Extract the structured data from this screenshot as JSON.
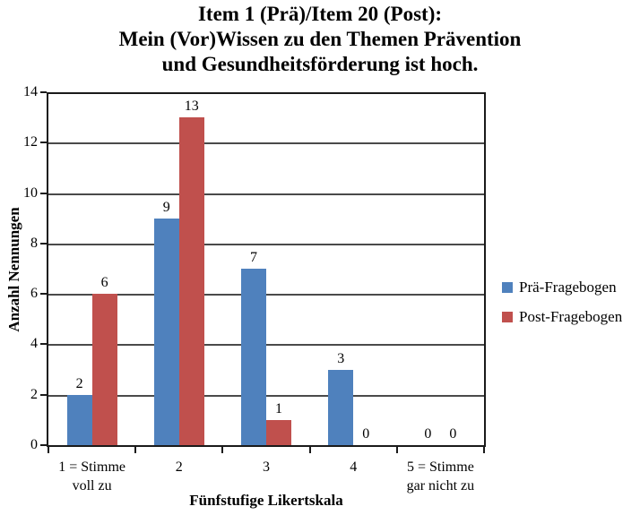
{
  "chart_data": {
    "type": "bar",
    "title": "Item 1 (Prä)/Item 20 (Post): Mein (Vor)Wissen zu den Themen Prävention und Gesundheitsförderung ist hoch.",
    "title_lines": [
      "Item 1 (Prä)/Item 20 (Post):",
      "Mein (Vor)Wissen zu den Themen Prävention",
      "und Gesundheitsförderung ist hoch."
    ],
    "categories": [
      "1 = Stimme\nvoll zu",
      "2",
      "3",
      "4",
      "5 = Stimme\ngar nicht zu"
    ],
    "series": [
      {
        "name": "Prä-Fragebogen",
        "color": "#4F81BD",
        "values": [
          2,
          9,
          7,
          3,
          0
        ]
      },
      {
        "name": "Post-Fragebogen",
        "color": "#C0504D",
        "values": [
          6,
          13,
          1,
          0,
          0
        ]
      }
    ],
    "xlabel": "Fünfstufige Likertskala",
    "ylabel": "Anzahl Nennungen",
    "ylim": [
      0,
      14
    ],
    "ytick_step": 2,
    "grid": true,
    "legend_position": "right",
    "show_value_labels": true
  },
  "colors": {
    "background": "#ffffff",
    "axis": "#1a1a1a",
    "gridline": "#4a4a4a",
    "series_blue": "#4F81BD",
    "series_red": "#C0504D"
  }
}
